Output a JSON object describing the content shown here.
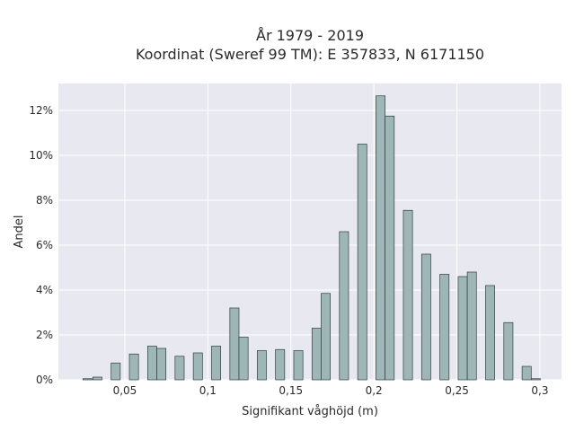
{
  "chart_data": {
    "type": "bar",
    "title_line1": "År 1979 - 2019",
    "title_line2": "Koordinat (Sweref 99 TM): E 357833, N 6171150",
    "xlabel": "Signifikant våghöjd (m)",
    "ylabel": "Andel",
    "xlim": [
      0.01,
      0.313
    ],
    "ylim": [
      0,
      13.2
    ],
    "x_ticks": [
      0.05,
      0.1,
      0.15,
      0.2,
      0.25,
      0.3
    ],
    "x_tick_labels": [
      "0,05",
      "0,1",
      "0,15",
      "0,2",
      "0,25",
      "0,3"
    ],
    "y_ticks": [
      0,
      2,
      4,
      6,
      8,
      10,
      12
    ],
    "y_tick_labels": [
      "0%",
      "2%",
      "4%",
      "6%",
      "8%",
      "10%",
      "12%"
    ],
    "grid": true,
    "background_color": "#e8e8f1",
    "bar_color": "#9fb6b6",
    "bar_edge_color": "#2f3f3f",
    "bar_width": 0.0055,
    "bars": [
      {
        "x": 0.0275,
        "y": 0.05
      },
      {
        "x": 0.0335,
        "y": 0.12
      },
      {
        "x": 0.0445,
        "y": 0.75
      },
      {
        "x": 0.0555,
        "y": 1.15
      },
      {
        "x": 0.0665,
        "y": 1.5
      },
      {
        "x": 0.072,
        "y": 1.4
      },
      {
        "x": 0.083,
        "y": 1.05
      },
      {
        "x": 0.094,
        "y": 1.2
      },
      {
        "x": 0.105,
        "y": 1.5
      },
      {
        "x": 0.116,
        "y": 3.2
      },
      {
        "x": 0.1215,
        "y": 1.9
      },
      {
        "x": 0.1325,
        "y": 1.3
      },
      {
        "x": 0.1435,
        "y": 1.35
      },
      {
        "x": 0.1545,
        "y": 1.3
      },
      {
        "x": 0.1655,
        "y": 2.3
      },
      {
        "x": 0.171,
        "y": 3.85
      },
      {
        "x": 0.182,
        "y": 6.6
      },
      {
        "x": 0.193,
        "y": 10.5
      },
      {
        "x": 0.204,
        "y": 12.65
      },
      {
        "x": 0.2095,
        "y": 11.75
      },
      {
        "x": 0.2205,
        "y": 7.55
      },
      {
        "x": 0.2315,
        "y": 5.6
      },
      {
        "x": 0.2425,
        "y": 4.7
      },
      {
        "x": 0.2535,
        "y": 4.6
      },
      {
        "x": 0.259,
        "y": 4.8
      },
      {
        "x": 0.27,
        "y": 4.2
      },
      {
        "x": 0.281,
        "y": 2.55
      },
      {
        "x": 0.292,
        "y": 0.6
      },
      {
        "x": 0.2975,
        "y": 0.05
      }
    ]
  }
}
